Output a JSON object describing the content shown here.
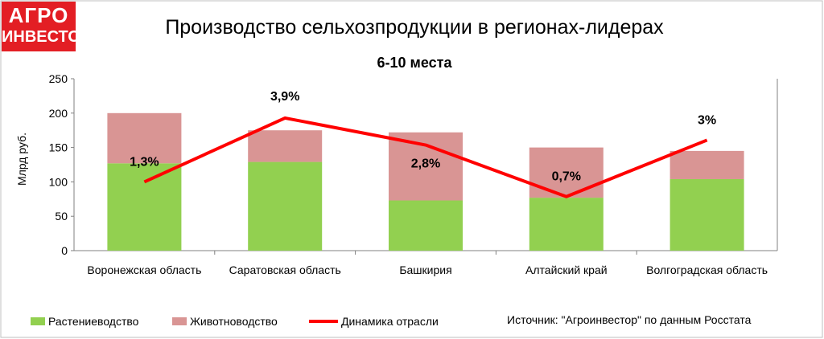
{
  "logo": {
    "line1": "АГРО",
    "line2": "ИНВЕСТОР"
  },
  "colors": {
    "plant": "#92d050",
    "animal": "#d99594",
    "dynamics": "#ff0000",
    "brand": "#e31e24"
  },
  "legend": {
    "plant": "Растениеводство",
    "animal": "Животноводство",
    "dynamics": "Динамика отрасли"
  },
  "source": "Источник: \"Агроинвестор\" по данным Росстата",
  "chart_data": {
    "type": "bar",
    "title": "Производство сельхозпродукции в регионах-лидерах",
    "subtitle": "6-10 места",
    "ylabel": "Млрд руб.",
    "ylim": [
      0,
      250
    ],
    "yticks": [
      0,
      50,
      100,
      150,
      200,
      250
    ],
    "grid": false,
    "legend_position": "bottom",
    "stacked": true,
    "categories": [
      "Воронежская область",
      "Саратовская область",
      "Башкирия",
      "Алтайский край",
      "Волгоградская область"
    ],
    "series": [
      {
        "name": "Растениеводство",
        "values": [
          127,
          129,
          73,
          77,
          104
        ]
      },
      {
        "name": "Животноводство",
        "values": [
          73,
          46,
          99,
          73,
          41
        ]
      }
    ],
    "line_series": {
      "name": "Динамика отрасли",
      "values": [
        1.3,
        3.9,
        2.8,
        0.7,
        3.0
      ],
      "labels": [
        "1,3%",
        "3,9%",
        "2,8%",
        "0,7%",
        "3%"
      ]
    }
  }
}
